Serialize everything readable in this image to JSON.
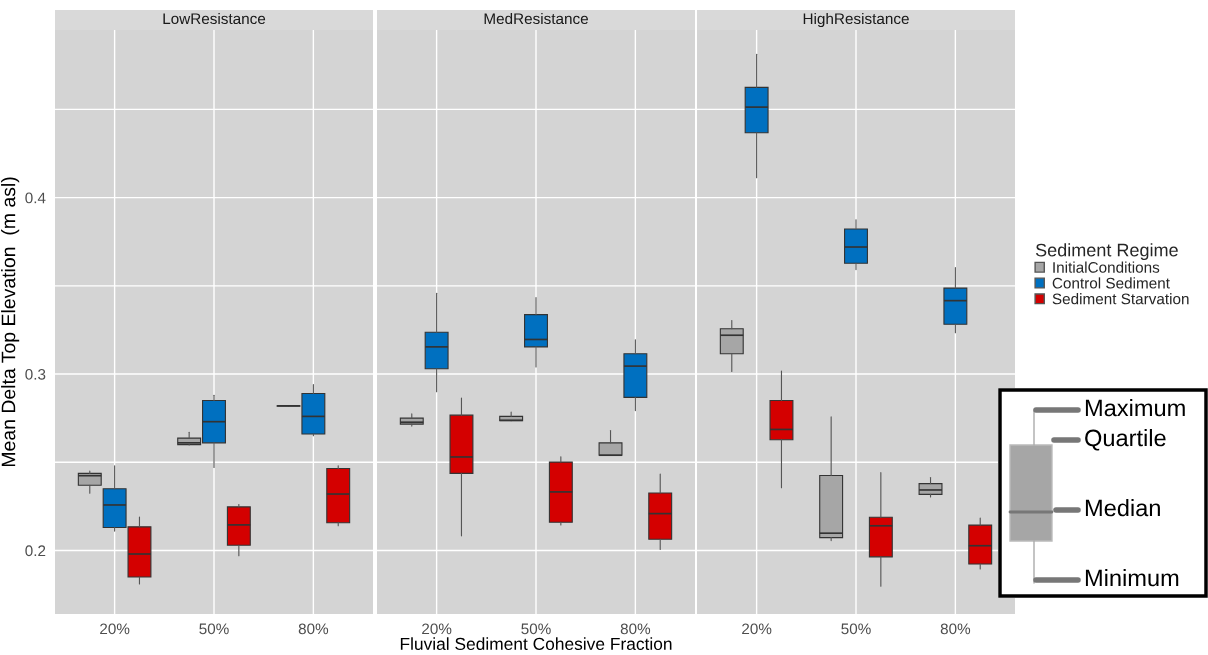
{
  "chart_data": [
    {
      "type": "box",
      "title": "LowResistance",
      "ylabel": "Mean Delta Top Elevation  (m asl)",
      "categories": [
        "20%",
        "50%",
        "80%"
      ],
      "ylim": [
        0.164,
        0.495
      ],
      "yticks": [
        0.2,
        {
          "value": 0.25,
          "label": null
        },
        0.3,
        {
          "value": 0.35,
          "label": null
        },
        0.4,
        {
          "value": 0.45,
          "label": null
        }
      ],
      "grid": true,
      "series": [
        {
          "color": "#a6a6a6",
          "boxes": [
            {
              "low": 0.2324,
              "q1": 0.237,
              "median": 0.2424,
              "q3": 0.2437,
              "high": 0.245
            },
            {
              "low": 0.2598,
              "q1": 0.26,
              "median": 0.261,
              "q3": 0.2637,
              "high": 0.267
            },
            {
              "low": 0.2818,
              "q1": 0.2818,
              "median": 0.282,
              "q3": 0.282,
              "high": 0.282
            }
          ]
        },
        {
          "color": "#0070c0",
          "boxes": [
            {
              "low": 0.211,
              "q1": 0.213,
              "median": 0.2258,
              "q3": 0.235,
              "high": 0.248
            },
            {
              "low": 0.247,
              "q1": 0.261,
              "median": 0.273,
              "q3": 0.285,
              "high": 0.288
            },
            {
              "low": 0.265,
              "q1": 0.266,
              "median": 0.276,
              "q3": 0.289,
              "high": 0.294
            }
          ]
        },
        {
          "color": "#d40000",
          "boxes": [
            {
              "low": 0.181,
              "q1": 0.185,
              "median": 0.198,
              "q3": 0.2134,
              "high": 0.219
            },
            {
              "low": 0.197,
              "q1": 0.203,
              "median": 0.2145,
              "q3": 0.2247,
              "high": 0.226
            },
            {
              "low": 0.214,
              "q1": 0.2157,
              "median": 0.232,
              "q3": 0.2465,
              "high": 0.248
            }
          ]
        }
      ]
    },
    {
      "type": "box",
      "title": "MedResistance",
      "xlabel": "Fluvial Sediment Cohesive Fraction",
      "categories": [
        "20%",
        "50%",
        "80%"
      ],
      "ylim": [
        0.164,
        0.495
      ],
      "yticks": [
        0.2,
        {
          "value": 0.25,
          "label": null
        },
        0.3,
        {
          "value": 0.35,
          "label": null
        },
        0.4,
        {
          "value": 0.45,
          "label": null
        }
      ],
      "grid": true,
      "tick_labels": "x",
      "series": [
        {
          "color": "#a6a6a6",
          "boxes": [
            {
              "low": 0.2705,
              "q1": 0.2716,
              "median": 0.2727,
              "q3": 0.275,
              "high": 0.2774
            },
            {
              "low": 0.2735,
              "q1": 0.2735,
              "median": 0.2738,
              "q3": 0.276,
              "high": 0.2785
            },
            {
              "low": 0.254,
              "q1": 0.254,
              "median": 0.254,
              "q3": 0.261,
              "high": 0.268
            }
          ]
        },
        {
          "color": "#0070c0",
          "boxes": [
            {
              "low": 0.29,
              "q1": 0.303,
              "median": 0.3154,
              "q3": 0.3237,
              "high": 0.3458
            },
            {
              "low": 0.304,
              "q1": 0.3154,
              "median": 0.3196,
              "q3": 0.3337,
              "high": 0.3433
            },
            {
              "low": 0.2793,
              "q1": 0.2868,
              "median": 0.3045,
              "q3": 0.3115,
              "high": 0.3194
            }
          ]
        },
        {
          "color": "#d40000",
          "boxes": [
            {
              "low": 0.2083,
              "q1": 0.2437,
              "median": 0.253,
              "q3": 0.2767,
              "high": 0.2864
            },
            {
              "low": 0.2145,
              "q1": 0.216,
              "median": 0.2332,
              "q3": 0.2501,
              "high": 0.2531
            },
            {
              "low": 0.2006,
              "q1": 0.2064,
              "median": 0.2209,
              "q3": 0.2326,
              "high": 0.2433
            }
          ]
        }
      ]
    },
    {
      "type": "box",
      "title": "HighResistance",
      "legend": "right",
      "legend_title": "Sediment Regime",
      "categories": [
        "20%",
        "50%",
        "80%"
      ],
      "ylim": [
        0.164,
        0.495
      ],
      "yticks": [
        0.2,
        {
          "value": 0.25,
          "label": null
        },
        0.3,
        {
          "value": 0.35,
          "label": null
        },
        0.4,
        {
          "value": 0.45,
          "label": null
        }
      ],
      "grid": true,
      "tick_labels": "x",
      "annotations": [
        "Maximum",
        "Quartile",
        "Median",
        "Minimum"
      ],
      "series": [
        {
          "name": "InitialConditions",
          "color": "#a6a6a6",
          "boxes": [
            {
              "low": 0.3015,
              "q1": 0.3115,
              "median": 0.322,
              "q3": 0.3257,
              "high": 0.3303
            },
            {
              "low": 0.2056,
              "q1": 0.2073,
              "median": 0.2098,
              "q3": 0.2425,
              "high": 0.2757
            },
            {
              "low": 0.2303,
              "q1": 0.2318,
              "median": 0.2343,
              "q3": 0.2379,
              "high": 0.2414
            }
          ]
        },
        {
          "name": "Control Sediment",
          "color": "#0070c0",
          "boxes": [
            {
              "low": 0.4113,
              "q1": 0.4368,
              "median": 0.4513,
              "q3": 0.4625,
              "high": 0.4812
            },
            {
              "low": 0.3592,
              "q1": 0.3628,
              "median": 0.372,
              "q3": 0.3822,
              "high": 0.3874
            },
            {
              "low": 0.3234,
              "q1": 0.3282,
              "median": 0.3416,
              "q3": 0.3487,
              "high": 0.3603
            }
          ]
        },
        {
          "name": "Sediment Starvation",
          "color": "#d40000",
          "boxes": [
            {
              "low": 0.2356,
              "q1": 0.2628,
              "median": 0.2686,
              "q3": 0.285,
              "high": 0.3017
            },
            {
              "low": 0.1797,
              "q1": 0.1964,
              "median": 0.214,
              "q3": 0.2188,
              "high": 0.2441
            },
            {
              "low": 0.1895,
              "q1": 0.1923,
              "median": 0.2027,
              "q3": 0.2144,
              "high": 0.2184
            }
          ]
        }
      ]
    }
  ]
}
